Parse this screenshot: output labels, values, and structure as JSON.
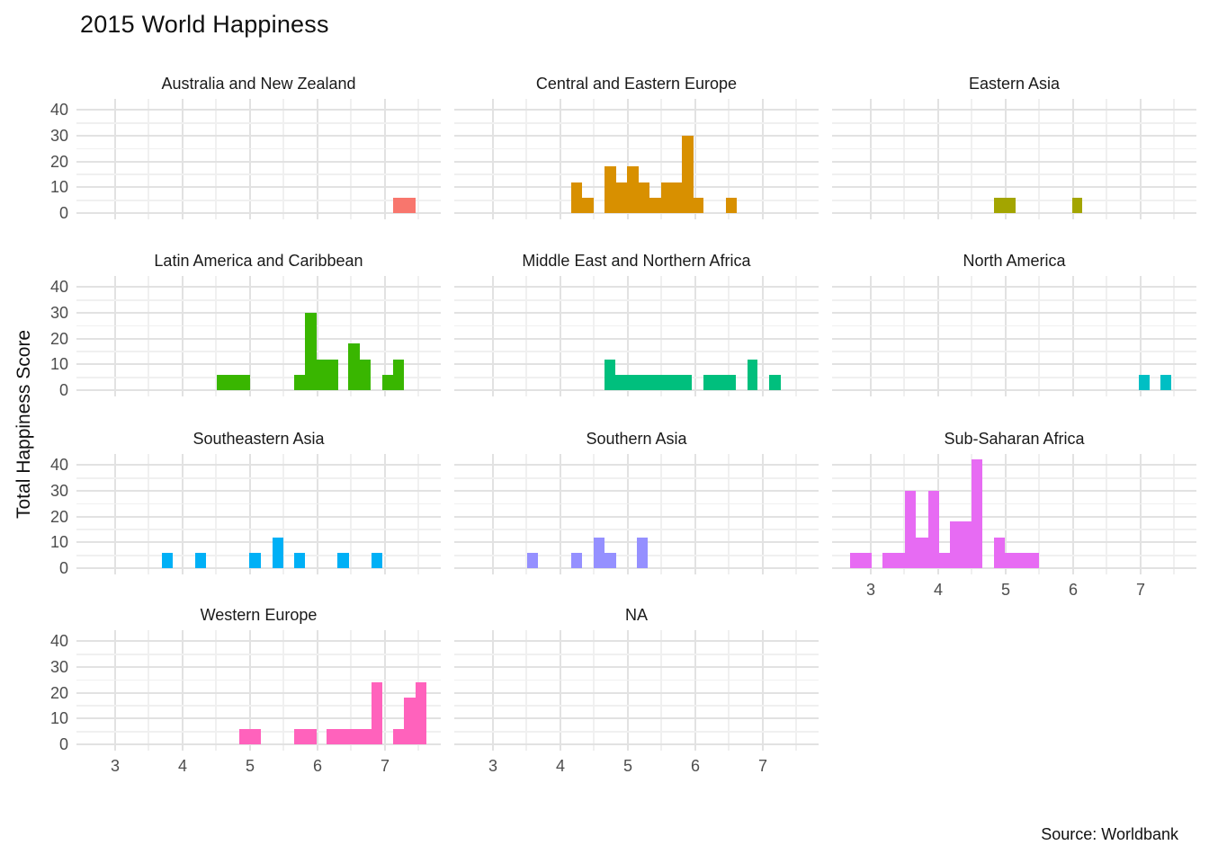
{
  "title": "2015 World Happiness",
  "y_axis_title": "Total Happiness Score",
  "source_note": "Source: Worldbank",
  "chart_data": {
    "type": "bar",
    "subtype": "faceted-histogram",
    "title": "2015 World Happiness",
    "xlabel": "",
    "ylabel": "Total Happiness Score",
    "x_ticks": [
      3,
      4,
      5,
      6,
      7
    ],
    "y_ticks": [
      0,
      10,
      20,
      30,
      40
    ],
    "x_minor_step": 0.5,
    "y_minor_step": 5,
    "xlim": [
      2.43,
      7.83
    ],
    "ylim": [
      0,
      44
    ],
    "binwidth": 0.16,
    "grid": "major-and-minor",
    "legend_position": "none",
    "facet_layout": {
      "rows": 4,
      "cols": 3
    },
    "facets": [
      {
        "label": "Australia and New Zealand",
        "color": "#F8766D",
        "row": 1,
        "col": 1,
        "bars": [
          {
            "x0": 7.12,
            "x1": 7.45,
            "h": 6
          }
        ]
      },
      {
        "label": "Central and Eastern Europe",
        "color": "#D89000",
        "row": 1,
        "col": 2,
        "bars": [
          {
            "x0": 4.16,
            "x1": 4.32,
            "h": 12
          },
          {
            "x0": 4.32,
            "x1": 4.49,
            "h": 6
          },
          {
            "x0": 4.65,
            "x1": 4.83,
            "h": 18
          },
          {
            "x0": 4.83,
            "x1": 4.99,
            "h": 12
          },
          {
            "x0": 4.99,
            "x1": 5.16,
            "h": 18
          },
          {
            "x0": 5.16,
            "x1": 5.32,
            "h": 12
          },
          {
            "x0": 5.32,
            "x1": 5.49,
            "h": 6
          },
          {
            "x0": 5.49,
            "x1": 5.65,
            "h": 12
          },
          {
            "x0": 5.65,
            "x1": 5.8,
            "h": 12
          },
          {
            "x0": 5.8,
            "x1": 5.97,
            "h": 30
          },
          {
            "x0": 5.97,
            "x1": 6.12,
            "h": 6
          },
          {
            "x0": 6.45,
            "x1": 6.61,
            "h": 6
          }
        ]
      },
      {
        "label": "Eastern Asia",
        "color": "#A3A500",
        "row": 1,
        "col": 3,
        "bars": [
          {
            "x0": 4.83,
            "x1": 5.15,
            "h": 6
          },
          {
            "x0": 5.99,
            "x1": 6.14,
            "h": 6
          }
        ]
      },
      {
        "label": "Latin America and Caribbean",
        "color": "#39B600",
        "row": 2,
        "col": 1,
        "bars": [
          {
            "x0": 4.51,
            "x1": 5.0,
            "h": 6
          },
          {
            "x0": 5.65,
            "x1": 5.81,
            "h": 6
          },
          {
            "x0": 5.81,
            "x1": 5.99,
            "h": 30
          },
          {
            "x0": 5.99,
            "x1": 6.31,
            "h": 12
          },
          {
            "x0": 6.45,
            "x1": 6.63,
            "h": 18
          },
          {
            "x0": 6.63,
            "x1": 6.79,
            "h": 12
          },
          {
            "x0": 6.96,
            "x1": 7.12,
            "h": 6
          },
          {
            "x0": 7.12,
            "x1": 7.28,
            "h": 12
          }
        ]
      },
      {
        "label": "Middle East and Northern Africa",
        "color": "#00BF7D",
        "row": 2,
        "col": 2,
        "bars": [
          {
            "x0": 4.65,
            "x1": 4.81,
            "h": 12
          },
          {
            "x0": 4.81,
            "x1": 5.95,
            "h": 6
          },
          {
            "x0": 6.12,
            "x1": 6.6,
            "h": 6
          },
          {
            "x0": 6.77,
            "x1": 6.92,
            "h": 12
          },
          {
            "x0": 7.09,
            "x1": 7.27,
            "h": 6
          }
        ]
      },
      {
        "label": "North America",
        "color": "#00BFC4",
        "row": 2,
        "col": 3,
        "bars": [
          {
            "x0": 6.97,
            "x1": 7.13,
            "h": 6
          },
          {
            "x0": 7.29,
            "x1": 7.45,
            "h": 6
          }
        ]
      },
      {
        "label": "Southeastern Asia",
        "color": "#00B0F6",
        "row": 3,
        "col": 1,
        "bars": [
          {
            "x0": 3.69,
            "x1": 3.85,
            "h": 6
          },
          {
            "x0": 4.19,
            "x1": 4.35,
            "h": 6
          },
          {
            "x0": 4.99,
            "x1": 5.16,
            "h": 6
          },
          {
            "x0": 5.33,
            "x1": 5.49,
            "h": 12
          },
          {
            "x0": 5.65,
            "x1": 5.81,
            "h": 6
          },
          {
            "x0": 6.3,
            "x1": 6.47,
            "h": 6
          },
          {
            "x0": 6.8,
            "x1": 6.96,
            "h": 6
          }
        ]
      },
      {
        "label": "Southern Asia",
        "color": "#9590FF",
        "row": 3,
        "col": 2,
        "bars": [
          {
            "x0": 3.51,
            "x1": 3.67,
            "h": 6
          },
          {
            "x0": 4.16,
            "x1": 4.32,
            "h": 6
          },
          {
            "x0": 4.49,
            "x1": 4.65,
            "h": 12
          },
          {
            "x0": 4.65,
            "x1": 4.83,
            "h": 6
          },
          {
            "x0": 5.13,
            "x1": 5.29,
            "h": 12
          }
        ]
      },
      {
        "label": "Sub-Saharan Africa",
        "color": "#E76BF3",
        "row": 3,
        "col": 3,
        "bars": [
          {
            "x0": 2.69,
            "x1": 3.01,
            "h": 6
          },
          {
            "x0": 3.17,
            "x1": 3.51,
            "h": 6
          },
          {
            "x0": 3.51,
            "x1": 3.67,
            "h": 30
          },
          {
            "x0": 3.67,
            "x1": 3.85,
            "h": 12
          },
          {
            "x0": 3.85,
            "x1": 4.01,
            "h": 30
          },
          {
            "x0": 4.01,
            "x1": 4.18,
            "h": 6
          },
          {
            "x0": 4.18,
            "x1": 4.49,
            "h": 18
          },
          {
            "x0": 4.49,
            "x1": 4.65,
            "h": 42
          },
          {
            "x0": 4.83,
            "x1": 4.99,
            "h": 12
          },
          {
            "x0": 4.99,
            "x1": 5.49,
            "h": 6
          }
        ]
      },
      {
        "label": "Western Europe",
        "color": "#FF62BC",
        "row": 4,
        "col": 1,
        "bars": [
          {
            "x0": 4.84,
            "x1": 5.16,
            "h": 6
          },
          {
            "x0": 5.65,
            "x1": 5.99,
            "h": 6
          },
          {
            "x0": 6.13,
            "x1": 6.8,
            "h": 6
          },
          {
            "x0": 6.8,
            "x1": 6.96,
            "h": 24
          },
          {
            "x0": 7.12,
            "x1": 7.28,
            "h": 6
          },
          {
            "x0": 7.28,
            "x1": 7.45,
            "h": 18
          },
          {
            "x0": 7.45,
            "x1": 7.61,
            "h": 24
          }
        ]
      },
      {
        "label": "NA",
        "color": "#7F7F7F",
        "row": 4,
        "col": 2,
        "bars": []
      }
    ]
  }
}
